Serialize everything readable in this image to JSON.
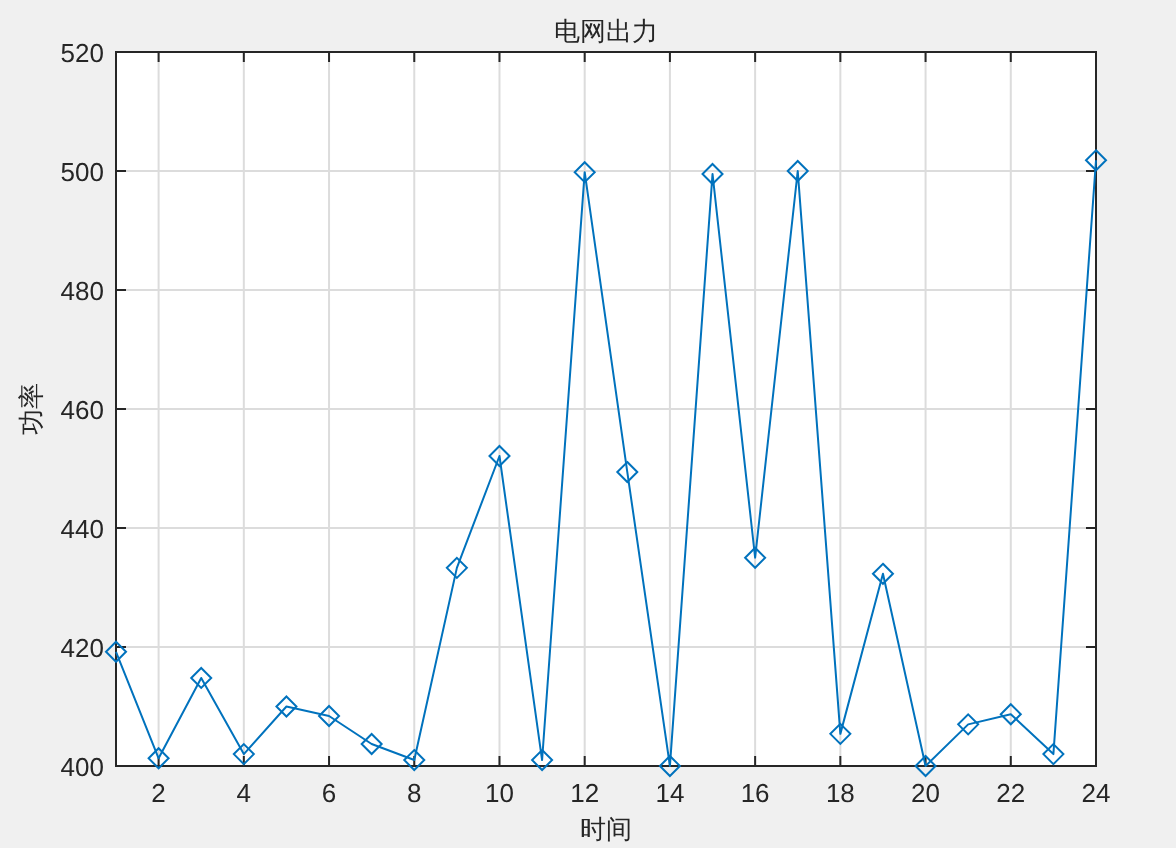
{
  "chart_data": {
    "type": "line",
    "title": "电网出力",
    "xlabel": "时间",
    "ylabel": "功率",
    "x": [
      1,
      2,
      3,
      4,
      5,
      6,
      7,
      8,
      9,
      10,
      11,
      12,
      13,
      14,
      15,
      16,
      17,
      18,
      19,
      20,
      21,
      22,
      23,
      24
    ],
    "series": [
      {
        "color": "#0072bd",
        "values": [
          419.2,
          401.3,
          414.8,
          402,
          410,
          408.4,
          403.7,
          401,
          433.3,
          452.1,
          401,
          499.8,
          449.4,
          400,
          499.5,
          435,
          500,
          405.4,
          432.3,
          400,
          407,
          408.7,
          402,
          501.8
        ]
      }
    ],
    "xlim": [
      1,
      24
    ],
    "xticks": [
      2,
      4,
      6,
      8,
      10,
      12,
      14,
      16,
      18,
      20,
      22,
      24
    ],
    "ylim": [
      400,
      520
    ],
    "yticks": [
      400,
      420,
      440,
      460,
      480,
      500,
      520
    ],
    "grid": true,
    "marker": "diamond",
    "line_style": "solid"
  }
}
